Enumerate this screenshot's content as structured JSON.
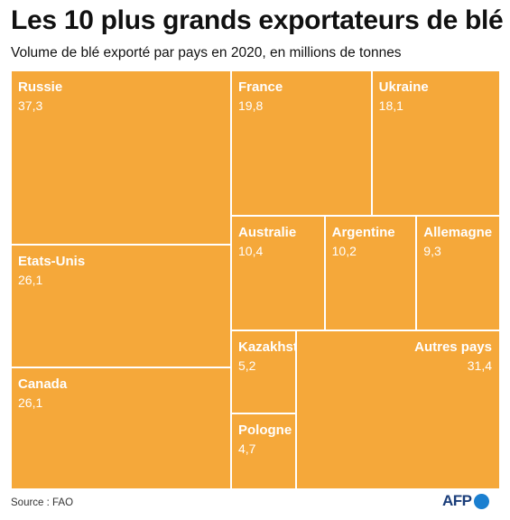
{
  "title": "Les 10 plus grands exportateurs de blé",
  "subtitle": "Volume de blé exporté par pays en 2020, en millions de tonnes",
  "source": "Source : FAO",
  "logo_text": "AFP",
  "colors": {
    "tile": "#f5a83a",
    "border": "#ffffff",
    "logo": "#1a3d7a",
    "logo_dot": "#1a7fd0"
  },
  "chart_data": {
    "type": "treemap",
    "title": "Les 10 plus grands exportateurs de blé",
    "subtitle": "Volume de blé exporté par pays en 2020, en millions de tonnes",
    "items": [
      {
        "name": "Russie",
        "value": 37.3,
        "label": "37,3"
      },
      {
        "name": "Etats-Unis",
        "value": 26.1,
        "label": "26,1"
      },
      {
        "name": "Canada",
        "value": 26.1,
        "label": "26,1"
      },
      {
        "name": "France",
        "value": 19.8,
        "label": "19,8"
      },
      {
        "name": "Ukraine",
        "value": 18.1,
        "label": "18,1"
      },
      {
        "name": "Australie",
        "value": 10.4,
        "label": "10,4"
      },
      {
        "name": "Argentine",
        "value": 10.2,
        "label": "10,2"
      },
      {
        "name": "Allemagne",
        "value": 9.3,
        "label": "9,3"
      },
      {
        "name": "Kazakhstan",
        "value": 5.2,
        "label": "5,2"
      },
      {
        "name": "Pologne",
        "value": 4.7,
        "label": "4,7"
      },
      {
        "name": "Autres pays",
        "value": 31.4,
        "label": "31,4"
      }
    ]
  }
}
